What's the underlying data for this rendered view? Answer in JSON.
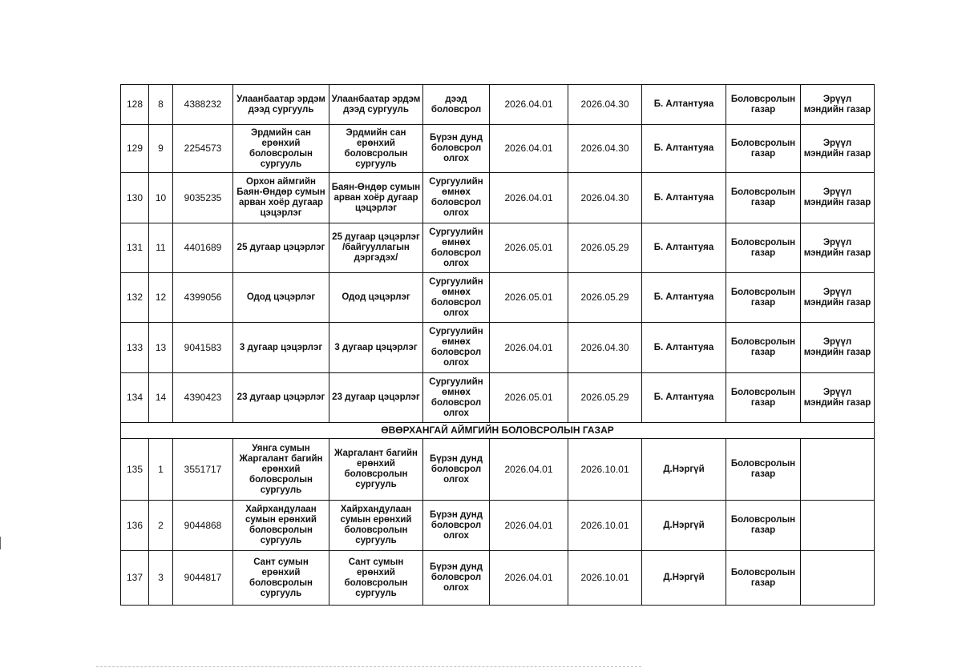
{
  "section_title": "ӨВӨРХАНГАЙ АЙМГИЙН БОЛОВСРОЛЫН ГАЗАР",
  "rows_before": [
    {
      "no": "128",
      "sub": "8",
      "code": "4388232",
      "name": "Улаанбаатар эрдэм дээд сургууль",
      "org": "Улаанбаатар эрдэм дээд сургууль",
      "level": "дээд боловсрол",
      "start": "2026.04.01",
      "end": "2026.04.30",
      "person": "Б. Алтантуяа",
      "dept": "Боловсролын газар",
      "other": "Эрүүл мэндийн газар"
    },
    {
      "no": "129",
      "sub": "9",
      "code": "2254573",
      "name": "Эрдмийн сан ерөнхий боловсролын сургууль",
      "org": "Эрдмийн сан ерөнхий боловсролын сургууль",
      "level": "Бүрэн дунд боловсрол олгох",
      "start": "2026.04.01",
      "end": "2026.04.30",
      "person": "Б. Алтантуяа",
      "dept": "Боловсролын газар",
      "other": "Эрүүл мэндийн газар"
    },
    {
      "no": "130",
      "sub": "10",
      "code": "9035235",
      "name": "Орхон аймгийн Баян-Өндөр сумын арван хоёр дугаар цэцэрлэг",
      "org": "Баян-Өндөр сумын арван хоёр дугаар цэцэрлэг",
      "level": "Сургуулийн өмнөх боловсрол олгох",
      "start": "2026.04.01",
      "end": "2026.04.30",
      "person": "Б. Алтантуяа",
      "dept": "Боловсролын газар",
      "other": "Эрүүл мэндийн газар"
    },
    {
      "no": "131",
      "sub": "11",
      "code": "4401689",
      "name": "25 дугаар цэцэрлэг",
      "org": "25 дугаар цэцэрлэг /байгууллагын дэргэдэх/",
      "level": "Сургуулийн өмнөх боловсрол олгох",
      "start": "2026.05.01",
      "end": "2026.05.29",
      "person": "Б. Алтантуяа",
      "dept": "Боловсролын газар",
      "other": "Эрүүл мэндийн газар"
    },
    {
      "no": "132",
      "sub": "12",
      "code": "4399056",
      "name": "Одод цэцэрлэг",
      "org": "Одод цэцэрлэг",
      "level": "Сургуулийн өмнөх боловсрол олгох",
      "start": "2026.05.01",
      "end": "2026.05.29",
      "person": "Б. Алтантуяа",
      "dept": "Боловсролын газар",
      "other": "Эрүүл мэндийн газар"
    },
    {
      "no": "133",
      "sub": "13",
      "code": "9041583",
      "name": "3 дугаар цэцэрлэг",
      "org": "3 дугаар цэцэрлэг",
      "level": "Сургуулийн өмнөх боловсрол олгох",
      "start": "2026.04.01",
      "end": "2026.04.30",
      "person": "Б. Алтантуяа",
      "dept": "Боловсролын газар",
      "other": "Эрүүл мэндийн газар"
    },
    {
      "no": "134",
      "sub": "14",
      "code": "4390423",
      "name": "23 дугаар цэцэрлэг",
      "org": "23 дугаар цэцэрлэг",
      "level": "Сургуулийн өмнөх боловсрол олгох",
      "start": "2026.05.01",
      "end": "2026.05.29",
      "person": "Б. Алтантуяа",
      "dept": "Боловсролын газар",
      "other": "Эрүүл мэндийн газар"
    }
  ],
  "rows_after": [
    {
      "no": "135",
      "sub": "1",
      "code": "3551717",
      "name": "Уянга сумын Жаргалант багийн ерөнхий боловсролын сургууль",
      "org": "Жаргалант багийн ерөнхий боловсролын сургууль",
      "level": "Бүрэн дунд боловсрол олгох",
      "start": "2026.04.01",
      "end": "2026.10.01",
      "person": "Д.Нэргүй",
      "dept": "Боловсролын газар",
      "other": ""
    },
    {
      "no": "136",
      "sub": "2",
      "code": "9044868",
      "name": "Хайрхандулаан сумын ерөнхий боловсролын сургууль",
      "org": "Хайрхандулаан сумын ерөнхий боловсролын сургууль",
      "level": "Бүрэн дунд боловсрол олгох",
      "start": "2026.04.01",
      "end": "2026.10.01",
      "person": "Д.Нэргүй",
      "dept": "Боловсролын газар",
      "other": ""
    },
    {
      "no": "137",
      "sub": "3",
      "code": "9044817",
      "name": "Сант сумын ерөнхий боловсролын сургууль",
      "org": "Сант сумын ерөнхий боловсролын сургууль",
      "level": "Бүрэн дунд боловсрол олгох",
      "start": "2026.04.01",
      "end": "2026.10.01",
      "person": "Д.Нэргүй",
      "dept": "Боловсролын газар",
      "other": ""
    }
  ]
}
